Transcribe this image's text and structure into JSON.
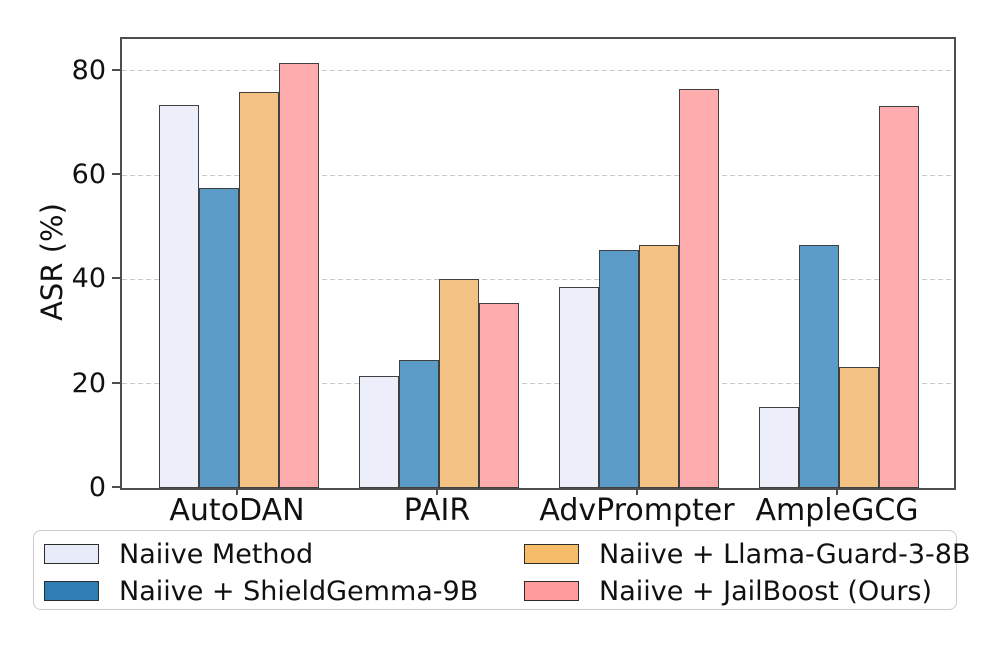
{
  "chart_data": {
    "type": "bar",
    "title": "",
    "xlabel": "",
    "ylabel": "ASR (%)",
    "categories": [
      "AutoDAN",
      "PAIR",
      "AdvPrompter",
      "AmpleGCG"
    ],
    "series": [
      {
        "name": "Naiive Method",
        "bar_color": "#ECEFFA",
        "legend_color": "#E8ECF8",
        "values": [
          73.5,
          21.5,
          38.5,
          15.5
        ]
      },
      {
        "name": "Naiive + ShieldGemma-9B",
        "bar_color": "#5A9BC8",
        "legend_color": "#2E7EB5",
        "values": [
          57.5,
          24.5,
          45.7,
          46.6
        ]
      },
      {
        "name": "Naiive + Llama-Guard-3-8B",
        "bar_color": "#F5C286",
        "legend_color": "#F7BC69",
        "values": [
          76.0,
          40.0,
          46.6,
          23.3
        ]
      },
      {
        "name": "Naiive + JailBoost (Ours)",
        "bar_color": "#FFACAE",
        "legend_color": "#FF9B9B",
        "values": [
          81.5,
          35.5,
          76.5,
          73.2
        ]
      }
    ],
    "yticks": [
      0,
      20,
      40,
      60,
      80
    ],
    "ylim": [
      0,
      86.1
    ],
    "grid": {
      "axis": "y",
      "style": "dashed",
      "color": "#c9c9c9",
      "shown_at": [
        20,
        40,
        60,
        80
      ]
    },
    "bar_edge_color": "#404040",
    "axis_spine_color": "#4e4e4e",
    "legend": {
      "position": "bottom",
      "columns": 2,
      "fill_order": "column-major"
    }
  }
}
